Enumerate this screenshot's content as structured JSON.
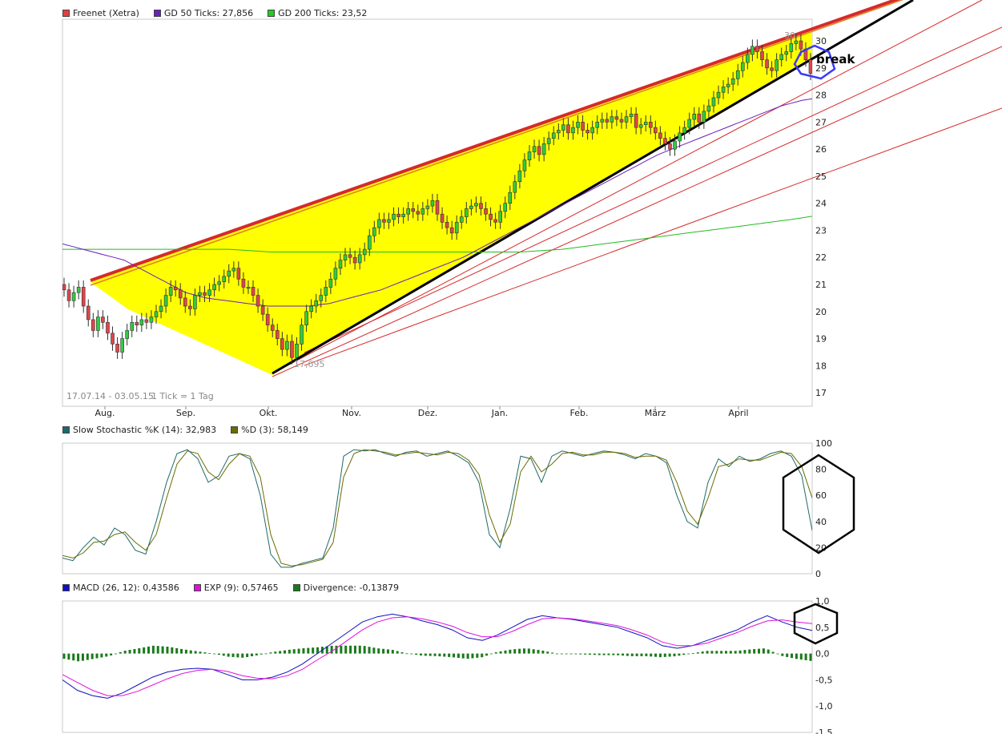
{
  "colors": {
    "price_up": "#2ecc40",
    "price_down": "#e0454b",
    "gd50": "#6a1fbf",
    "gd200": "#22bb22",
    "wedge_fill": "#ffff00",
    "channel": "#d62a2a",
    "stoch_k": "#1e6a6a",
    "stoch_d": "#6b6b00",
    "macd": "#1010c0",
    "exp": "#e010e0",
    "divergence": "#1a7a1a"
  },
  "legends": {
    "price": [
      {
        "label": "Freenet (Xetra)",
        "color": "#e04040"
      },
      {
        "label": "GD 50 Ticks: 27,856",
        "color": "#6a1fbf"
      },
      {
        "label": "GD 200 Ticks: 23,52",
        "color": "#22cc22"
      }
    ],
    "stoch": [
      {
        "label": "Slow Stochastic %K (14): 32,983",
        "color": "#1e6a6a"
      },
      {
        "label": "%D (3): 58,149",
        "color": "#6b6b00"
      }
    ],
    "macd": [
      {
        "label": "MACD (26, 12): 0,43586",
        "color": "#1010c0"
      },
      {
        "label": "EXP (9): 0,57465",
        "color": "#e010e0"
      },
      {
        "label": "Divergence: -0,13879",
        "color": "#1a7a1a"
      }
    ]
  },
  "chart_data": [
    {
      "type": "candlestick",
      "period_label": "17.07.14 - 03.05.15",
      "tick_label": "1 Tick = 1 Tag",
      "low_annotation": "17,695",
      "high_annotation": "30",
      "break_annotation": "break",
      "y_ticks": [
        "17",
        "18",
        "19",
        "20",
        "21",
        "22",
        "23",
        "24",
        "25",
        "26",
        "27",
        "28",
        "29",
        "30"
      ],
      "ylim": [
        16.5,
        30.8
      ],
      "x_ticks": [
        "Aug.",
        "Sep.",
        "Okt.",
        "Nov.",
        "Dez.",
        "Jan.",
        "Feb.",
        "März",
        "April"
      ],
      "close": [
        20.8,
        20.4,
        20.7,
        20.9,
        20.2,
        19.7,
        19.3,
        19.8,
        19.6,
        19.2,
        18.8,
        18.5,
        19.0,
        19.3,
        19.6,
        19.5,
        19.7,
        19.6,
        19.8,
        20.0,
        20.2,
        20.6,
        20.9,
        20.8,
        20.5,
        20.2,
        20.1,
        20.6,
        20.7,
        20.6,
        20.8,
        21.0,
        21.1,
        21.3,
        21.5,
        21.6,
        21.2,
        20.9,
        20.9,
        20.6,
        20.2,
        19.9,
        19.5,
        19.3,
        19.0,
        18.6,
        18.9,
        18.3,
        18.8,
        19.5,
        20.0,
        20.2,
        20.4,
        20.6,
        20.9,
        21.2,
        21.6,
        21.9,
        22.1,
        22.0,
        21.8,
        22.1,
        22.3,
        22.8,
        23.1,
        23.4,
        23.3,
        23.4,
        23.6,
        23.5,
        23.6,
        23.8,
        23.7,
        23.6,
        23.8,
        23.9,
        24.1,
        23.6,
        23.3,
        23.1,
        22.9,
        23.3,
        23.5,
        23.8,
        23.9,
        24.0,
        23.8,
        23.6,
        23.4,
        23.3,
        23.7,
        24.0,
        24.4,
        24.8,
        25.2,
        25.6,
        25.9,
        26.1,
        25.8,
        26.2,
        26.4,
        26.6,
        26.7,
        26.9,
        26.6,
        26.8,
        27.0,
        26.7,
        26.6,
        26.8,
        27.0,
        27.1,
        27.0,
        27.2,
        27.1,
        27.0,
        27.2,
        27.3,
        26.8,
        26.9,
        27.0,
        26.8,
        26.6,
        26.4,
        26.2,
        26.0,
        26.3,
        26.6,
        26.8,
        27.1,
        27.3,
        27.0,
        27.4,
        27.6,
        27.9,
        28.1,
        28.3,
        28.4,
        28.6,
        28.9,
        29.2,
        29.5,
        29.8,
        29.6,
        29.3,
        29.0,
        28.9,
        29.3,
        29.5,
        29.6,
        29.9,
        30.0,
        29.7,
        29.3,
        28.8
      ],
      "gd50": [
        22.5,
        22.4,
        22.3,
        22.2,
        22.1,
        22.0,
        21.9,
        21.7,
        21.5,
        21.3,
        21.1,
        20.9,
        20.7,
        20.6,
        20.5,
        20.45,
        20.4,
        20.35,
        20.3,
        20.25,
        20.2,
        20.2,
        20.2,
        20.2,
        20.2,
        20.25,
        20.3,
        20.4,
        20.5,
        20.6,
        20.7,
        20.8,
        20.95,
        21.1,
        21.25,
        21.4,
        21.55,
        21.7,
        21.85,
        22.0,
        22.2,
        22.4,
        22.6,
        22.8,
        23.0,
        23.2,
        23.4,
        23.6,
        23.8,
        24.0,
        24.2,
        24.4,
        24.6,
        24.8,
        25.0,
        25.2,
        25.4,
        25.6,
        25.8,
        25.95,
        26.1,
        26.25,
        26.4,
        26.55,
        26.7,
        26.85,
        27.0,
        27.15,
        27.3,
        27.45,
        27.6,
        27.7,
        27.8,
        27.86
      ],
      "gd200": [
        22.3,
        22.3,
        22.3,
        22.3,
        22.3,
        22.3,
        22.3,
        22.3,
        22.3,
        22.25,
        22.2,
        22.2,
        22.2,
        22.2,
        22.2,
        22.2,
        22.2,
        22.2,
        22.2,
        22.2,
        22.2,
        22.2,
        22.2,
        22.25,
        22.3,
        22.4,
        22.5,
        22.6,
        22.7,
        22.8,
        22.9,
        23.0,
        23.1,
        23.2,
        23.3,
        23.4,
        23.52
      ]
    },
    {
      "type": "line",
      "title": "Slow Stochastic",
      "y_ticks": [
        "0",
        "20",
        "40",
        "60",
        "80",
        "100"
      ],
      "ylim": [
        0,
        100
      ],
      "series": [
        {
          "name": "%K",
          "values": [
            12,
            10,
            20,
            28,
            22,
            35,
            30,
            18,
            15,
            40,
            70,
            92,
            95,
            88,
            70,
            75,
            90,
            92,
            88,
            60,
            15,
            5,
            5,
            8,
            10,
            12,
            35,
            90,
            95,
            94,
            95,
            92,
            90,
            93,
            94,
            90,
            92,
            94,
            90,
            85,
            70,
            30,
            20,
            50,
            90,
            88,
            70,
            90,
            94,
            92,
            90,
            92,
            94,
            93,
            91,
            88,
            92,
            90,
            85,
            60,
            40,
            35,
            70,
            88,
            82,
            90,
            86,
            88,
            92,
            94,
            90,
            75,
            33
          ]
        },
        {
          "name": "%D",
          "values": [
            14,
            12,
            16,
            24,
            25,
            30,
            32,
            24,
            18,
            30,
            58,
            84,
            94,
            92,
            78,
            72,
            84,
            92,
            90,
            74,
            30,
            8,
            6,
            7,
            9,
            11,
            24,
            74,
            92,
            95,
            94,
            93,
            91,
            92,
            93,
            92,
            91,
            93,
            92,
            87,
            76,
            45,
            24,
            38,
            78,
            90,
            78,
            84,
            92,
            93,
            91,
            91,
            93,
            93,
            92,
            89,
            90,
            90,
            87,
            70,
            48,
            38,
            58,
            82,
            84,
            88,
            87,
            87,
            90,
            93,
            92,
            82,
            58
          ]
        }
      ]
    },
    {
      "type": "line",
      "title": "MACD",
      "y_ticks": [
        "1,0",
        "0,5",
        "0,0",
        "-0,5",
        "-1,0",
        "-1,5"
      ],
      "ylim": [
        -1.5,
        1.0
      ],
      "series": [
        {
          "name": "MACD",
          "values": [
            -0.5,
            -0.7,
            -0.8,
            -0.85,
            -0.75,
            -0.6,
            -0.45,
            -0.35,
            -0.3,
            -0.28,
            -0.3,
            -0.4,
            -0.5,
            -0.5,
            -0.45,
            -0.35,
            -0.2,
            0.0,
            0.2,
            0.4,
            0.6,
            0.7,
            0.75,
            0.7,
            0.62,
            0.55,
            0.45,
            0.3,
            0.25,
            0.35,
            0.5,
            0.65,
            0.72,
            0.68,
            0.65,
            0.6,
            0.55,
            0.5,
            0.4,
            0.3,
            0.15,
            0.1,
            0.15,
            0.25,
            0.35,
            0.45,
            0.6,
            0.72,
            0.6,
            0.5,
            0.44
          ]
        },
        {
          "name": "EXP",
          "values": [
            -0.4,
            -0.55,
            -0.7,
            -0.8,
            -0.8,
            -0.72,
            -0.6,
            -0.48,
            -0.38,
            -0.32,
            -0.3,
            -0.34,
            -0.42,
            -0.47,
            -0.48,
            -0.42,
            -0.3,
            -0.12,
            0.05,
            0.25,
            0.45,
            0.6,
            0.68,
            0.7,
            0.66,
            0.6,
            0.52,
            0.4,
            0.32,
            0.32,
            0.42,
            0.55,
            0.66,
            0.68,
            0.66,
            0.62,
            0.58,
            0.53,
            0.45,
            0.35,
            0.22,
            0.15,
            0.15,
            0.2,
            0.3,
            0.4,
            0.52,
            0.62,
            0.64,
            0.6,
            0.57
          ]
        }
      ],
      "divergence": [
        -0.1,
        -0.15,
        -0.1,
        -0.05,
        0.05,
        0.1,
        0.15,
        0.13,
        0.08,
        0.04,
        0.0,
        -0.06,
        -0.08,
        -0.03,
        0.03,
        0.07,
        0.1,
        0.12,
        0.15,
        0.15,
        0.15,
        0.1,
        0.07,
        0.0,
        -0.04,
        -0.05,
        -0.07,
        -0.1,
        -0.07,
        0.03,
        0.08,
        0.1,
        0.06,
        0.0,
        -0.01,
        -0.02,
        -0.03,
        -0.03,
        -0.05,
        -0.05,
        -0.07,
        -0.05,
        0.0,
        0.05,
        0.05,
        0.05,
        0.08,
        0.1,
        -0.04,
        -0.1,
        -0.14
      ]
    }
  ]
}
